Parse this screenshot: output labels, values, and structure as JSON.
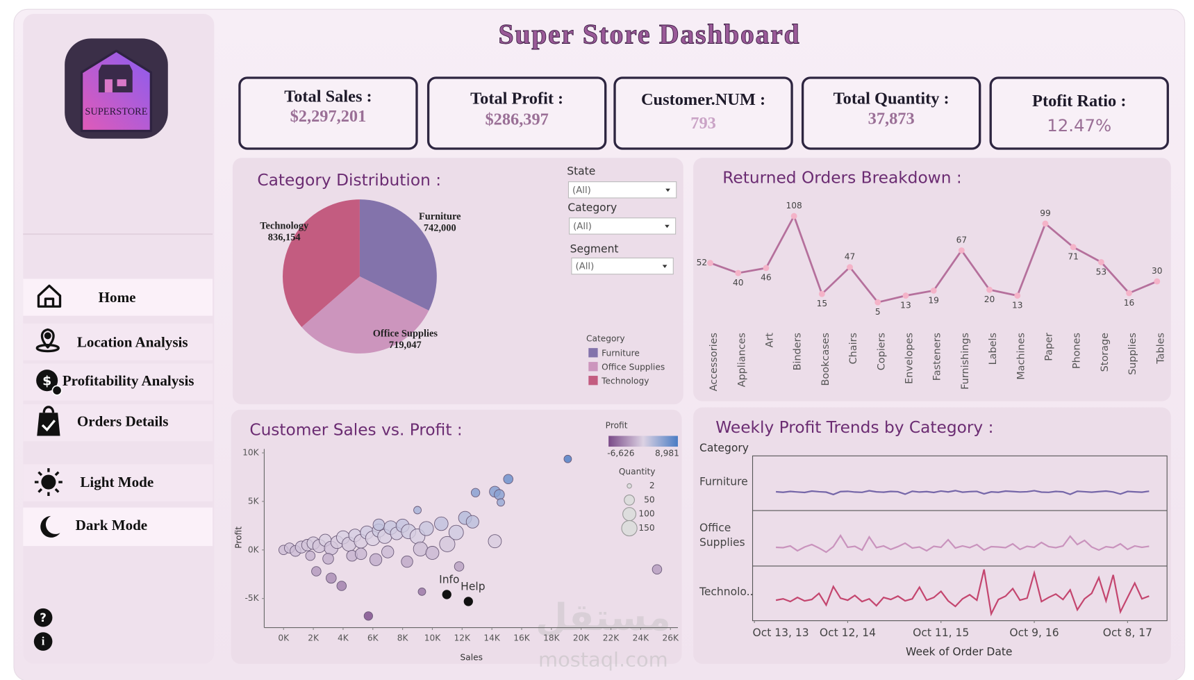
{
  "header": {
    "title": "Super Store  Dashboard"
  },
  "logo": {
    "text": "SUPERSTORE"
  },
  "sidebar": {
    "nav": [
      "Home",
      "Location Analysis",
      "Profitability Analysis",
      "Orders Details",
      "Light Mode",
      "Dark Mode"
    ]
  },
  "kpis": [
    {
      "label": "Total Sales :",
      "value": "$2,297,201"
    },
    {
      "label": "Total Profit :",
      "value": "$286,397"
    },
    {
      "label": "Customer.NUM :",
      "value": "793"
    },
    {
      "label": "Total Quantity :",
      "value": "37,873"
    },
    {
      "label": "Ptofit Ratio :",
      "value": "12.47%"
    }
  ],
  "filters": [
    {
      "label": "State",
      "value": "(All)"
    },
    {
      "label": "Category",
      "value": "(All)"
    },
    {
      "label": "Segment",
      "value": "(All)"
    }
  ],
  "help": {
    "info": "Info",
    "help": "Help"
  },
  "watermark": [
    "مستقل",
    "mostaql.com"
  ],
  "chart_data": [
    {
      "type": "pie",
      "title": "Category Distribution  :",
      "categories": [
        "Furniture",
        "Office Supplies",
        "Technology"
      ],
      "values": [
        742000,
        719047,
        836154
      ],
      "value_labels": [
        "742,000",
        "719,047",
        "836,154"
      ],
      "colors": [
        "#8373ab",
        "#cc95bd",
        "#c35c80"
      ],
      "legend_title": "Category"
    },
    {
      "type": "line",
      "title": "Returned Orders Breakdown :",
      "categories": [
        "Accessories",
        "Appliances",
        "Art",
        "Binders",
        "Bookcases",
        "Chairs",
        "Copiers",
        "Envelopes",
        "Fasteners",
        "Furnishings",
        "Labels",
        "Machines",
        "Paper",
        "Phones",
        "Storage",
        "Supplies",
        "Tables"
      ],
      "values": [
        52,
        40,
        46,
        108,
        15,
        47,
        5,
        13,
        19,
        67,
        20,
        13,
        99,
        71,
        53,
        16,
        30
      ],
      "ylim": [
        0,
        115
      ],
      "color": "#b5709c",
      "marker_color": "#f4b3c8"
    },
    {
      "type": "scatter",
      "title": "Customer Sales vs. Profit :",
      "x_label": "Sales",
      "y_label": "Profit",
      "xlim": [
        -1300,
        26500
      ],
      "ylim": [
        -8000,
        10400
      ],
      "xticks": [
        {
          "value": 0,
          "label": "0K"
        },
        {
          "value": 2000,
          "label": "2K"
        },
        {
          "value": 4000,
          "label": "4K"
        },
        {
          "value": 6000,
          "label": "6K"
        },
        {
          "value": 8000,
          "label": "8K"
        },
        {
          "value": 10000,
          "label": "10K"
        },
        {
          "value": 12000,
          "label": "12K"
        },
        {
          "value": 14000,
          "label": "14K"
        },
        {
          "value": 16000,
          "label": "16K"
        },
        {
          "value": 18000,
          "label": "18K"
        },
        {
          "value": 20000,
          "label": "20K"
        },
        {
          "value": 22000,
          "label": "22K"
        },
        {
          "value": 24000,
          "label": "24K"
        },
        {
          "value": 26000,
          "label": "26K"
        }
      ],
      "yticks": [
        {
          "value": -5000,
          "label": "-5K"
        },
        {
          "value": 0,
          "label": "0K"
        },
        {
          "value": 5000,
          "label": "5K"
        },
        {
          "value": 10000,
          "label": "10K"
        }
      ],
      "x": [
        19100,
        15100,
        12900,
        14200,
        14500,
        14600,
        14200,
        25100,
        5700,
        9300,
        11800,
        3900,
        3200,
        2200,
        9000,
        0,
        400,
        800,
        1200,
        1600,
        2000,
        2400,
        2800,
        3200,
        3600,
        4000,
        4400,
        4800,
        5200,
        5600,
        6000,
        6400,
        6800,
        7200,
        7600,
        8000,
        8400,
        9000,
        9600,
        10600,
        11000,
        12200,
        12700,
        8300,
        6200,
        4600,
        9200,
        10000,
        3000,
        1800,
        5200,
        7000,
        11600,
        6400
      ],
      "values": [
        9370,
        7300,
        5900,
        6000,
        5700,
        4900,
        900,
        -2000,
        -6800,
        -4300,
        -1700,
        -3700,
        -2900,
        -2200,
        4100,
        0,
        200,
        -100,
        300,
        500,
        700,
        400,
        1000,
        200,
        800,
        1300,
        600,
        1500,
        900,
        1800,
        1200,
        2000,
        1400,
        2300,
        1700,
        2500,
        1900,
        1400,
        2200,
        2700,
        600,
        3300,
        2900,
        -1200,
        -1000,
        -600,
        100,
        -300,
        -900,
        -600,
        -400,
        -200,
        1800,
        2600
      ],
      "sizes": [
        20,
        40,
        30,
        60,
        50,
        20,
        100,
        40,
        30,
        20,
        40,
        40,
        50,
        40,
        20,
        40,
        50,
        60,
        80,
        70,
        90,
        100,
        80,
        110,
        90,
        100,
        120,
        90,
        110,
        100,
        130,
        100,
        120,
        110,
        90,
        100,
        130,
        140,
        120,
        110,
        150,
        100,
        90,
        70,
        80,
        60,
        120,
        100,
        60,
        40,
        70,
        80,
        130,
        70
      ],
      "color_scale": {
        "title": "Profit",
        "min": {
          "value": -6626,
          "label": "-6,626"
        },
        "max": {
          "value": 8981,
          "label": "8,981"
        },
        "colors": [
          "#7a4a88",
          "#dcd2e3",
          "#4a7cc4"
        ]
      },
      "size_legend": {
        "title": "Quantity",
        "values": [
          2,
          50,
          100,
          150
        ]
      }
    },
    {
      "type": "line",
      "title": "Weekly Profit Trends by Category :",
      "row_title": "Category",
      "x_label": "Week of Order Date",
      "xlim": [
        -1,
        230
      ],
      "ylim": [
        -2500,
        5500
      ],
      "xticks": [
        {
          "value": 0,
          "label": "Oct 13, 13"
        },
        {
          "value": 52,
          "label": "Oct 12, 14"
        },
        {
          "value": 104,
          "label": "Oct 11, 15"
        },
        {
          "value": 156,
          "label": "Oct 9, 16"
        },
        {
          "value": 208,
          "label": "Oct 8, 17"
        }
      ],
      "x": [
        12,
        16,
        20,
        24,
        28,
        32,
        36,
        40,
        44,
        48,
        52,
        56,
        60,
        64,
        68,
        72,
        76,
        80,
        84,
        88,
        92,
        96,
        100,
        104,
        108,
        112,
        116,
        120,
        124,
        128,
        132,
        136,
        140,
        144,
        148,
        152,
        156,
        160,
        164,
        168,
        172,
        176,
        180,
        184,
        188,
        192,
        196,
        200,
        204,
        208,
        212,
        216,
        220
      ],
      "series": [
        {
          "name": "Furniture",
          "color": "#7566a8",
          "values": [
            250,
            180,
            300,
            220,
            150,
            350,
            260,
            200,
            -150,
            280,
            320,
            210,
            170,
            400,
            240,
            190,
            300,
            260,
            -100,
            330,
            210,
            280,
            150,
            360,
            230,
            420,
            190,
            270,
            310,
            -50,
            240,
            180,
            350,
            290,
            220,
            260,
            410,
            200,
            170,
            300,
            240,
            -120,
            330,
            260,
            190,
            280,
            350,
            220,
            -80,
            300,
            240,
            190,
            330
          ]
        },
        {
          "name": "Office Supplies",
          "color": "#c993bd",
          "values": [
            200,
            150,
            400,
            -300,
            250,
            600,
            100,
            -500,
            300,
            1900,
            200,
            350,
            -200,
            1700,
            150,
            400,
            -100,
            300,
            800,
            100,
            250,
            -300,
            350,
            200,
            1300,
            100,
            400,
            150,
            600,
            -200,
            300,
            250,
            150,
            700,
            -100,
            350,
            200,
            900,
            300,
            150,
            400,
            1800,
            600,
            1200,
            250,
            -200,
            300,
            150,
            700,
            -100,
            400,
            200,
            350
          ]
        },
        {
          "name": "Technolo..",
          "color": "#c4466f",
          "values": [
            500,
            700,
            300,
            900,
            400,
            600,
            1500,
            -200,
            2500,
            800,
            500,
            1200,
            300,
            700,
            -300,
            900,
            600,
            1100,
            400,
            700,
            2400,
            500,
            900,
            1800,
            400,
            -400,
            700,
            1300,
            500,
            5000,
            -1500,
            600,
            1100,
            2200,
            500,
            800,
            4500,
            300,
            900,
            1400,
            600,
            2000,
            -900,
            700,
            1500,
            3800,
            400,
            4200,
            -1200,
            900,
            3000,
            700,
            1100
          ]
        }
      ]
    }
  ]
}
